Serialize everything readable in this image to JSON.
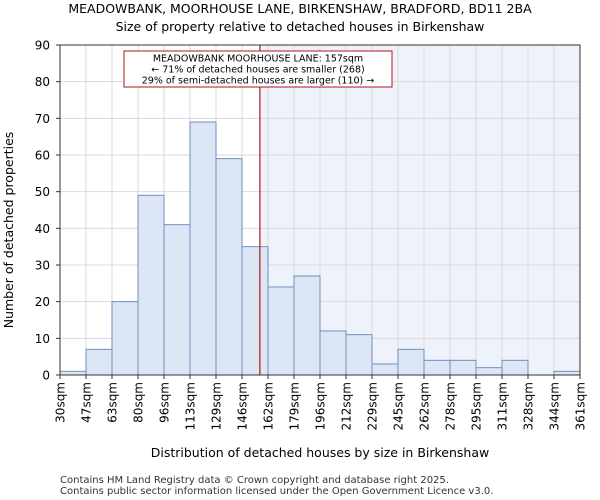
{
  "chart_data": {
    "type": "bar",
    "title": "MEADOWBANK, MOORHOUSE LANE, BIRKENSHAW, BRADFORD, BD11 2BA",
    "subtitle": "Size of property relative to detached houses in Birkenshaw",
    "xlabel": "Distribution of detached houses by size in Birkenshaw",
    "ylabel": "Number of detached properties",
    "ylim": [
      0,
      90
    ],
    "yticks": [
      0,
      10,
      20,
      30,
      40,
      50,
      60,
      70,
      80,
      90
    ],
    "tick_labels": [
      "30sqm",
      "47sqm",
      "63sqm",
      "80sqm",
      "96sqm",
      "113sqm",
      "129sqm",
      "146sqm",
      "162sqm",
      "179sqm",
      "196sqm",
      "212sqm",
      "229sqm",
      "245sqm",
      "262sqm",
      "278sqm",
      "295sqm",
      "311sqm",
      "328sqm",
      "344sqm",
      "361sqm"
    ],
    "values": [
      1,
      7,
      20,
      49,
      41,
      69,
      59,
      35,
      24,
      27,
      12,
      11,
      3,
      7,
      4,
      4,
      2,
      4,
      0,
      1
    ],
    "marker": {
      "value_sqm": 157,
      "lines": [
        "MEADOWBANK MOORHOUSE LANE: 157sqm",
        "← 71% of detached houses are smaller (268)",
        "29% of semi-detached houses are larger (110) →"
      ]
    },
    "colors": {
      "bar_fill": "#dce6f4",
      "bar_stroke": "#6f8fbf",
      "highlight_bg": "#eef2fb",
      "marker_line": "#b0161c",
      "grid": "#d9d9d9"
    },
    "grid": true
  },
  "footer": {
    "line1": "Contains HM Land Registry data © Crown copyright and database right 2025.",
    "line2": "Contains public sector information licensed under the Open Government Licence v3.0."
  }
}
